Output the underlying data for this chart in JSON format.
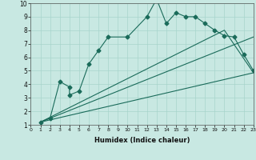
{
  "xlabel": "Humidex (Indice chaleur)",
  "xlim": [
    0,
    23
  ],
  "ylim": [
    1,
    10
  ],
  "xticks": [
    0,
    1,
    2,
    3,
    4,
    5,
    6,
    7,
    8,
    9,
    10,
    11,
    12,
    13,
    14,
    15,
    16,
    17,
    18,
    19,
    20,
    21,
    22,
    23
  ],
  "yticks": [
    1,
    2,
    3,
    4,
    5,
    6,
    7,
    8,
    9,
    10
  ],
  "bg_color": "#c8e8e2",
  "line_color": "#1a6b5a",
  "series1_x": [
    1,
    2,
    3,
    4,
    4,
    5,
    6,
    7,
    8,
    10,
    12,
    13,
    14,
    15,
    16,
    17,
    18,
    19,
    20,
    21,
    22,
    23
  ],
  "series1_y": [
    1.2,
    1.5,
    4.2,
    3.8,
    3.2,
    3.5,
    5.5,
    6.5,
    7.5,
    7.5,
    9.0,
    10.3,
    8.5,
    9.3,
    9.0,
    9.0,
    8.5,
    8.0,
    7.6,
    7.5,
    6.2,
    5.0
  ],
  "line1_x": [
    1,
    23
  ],
  "line1_y": [
    1.2,
    4.85
  ],
  "line2_x": [
    1,
    20,
    23
  ],
  "line2_y": [
    1.2,
    8.0,
    4.85
  ],
  "line3_x": [
    1,
    23
  ],
  "line3_y": [
    1.2,
    7.5
  ]
}
